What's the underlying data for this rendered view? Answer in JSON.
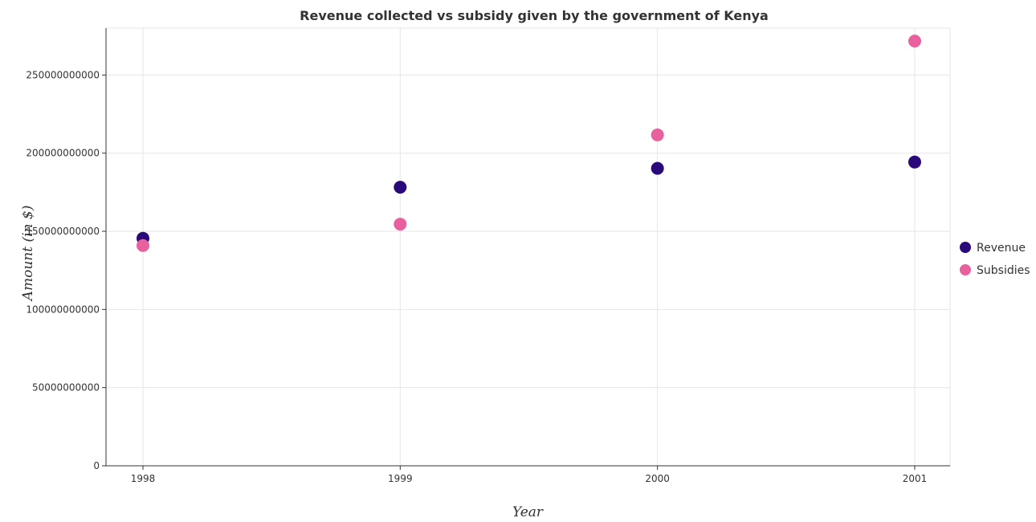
{
  "chart_data": {
    "type": "scatter",
    "title": "Revenue collected vs subsidy given by the government of Kenya",
    "xlabel": "Year",
    "ylabel": "Amount (in $)",
    "categories": [
      "1998",
      "1999",
      "2000",
      "2001"
    ],
    "ylim": [
      0,
      280000000000
    ],
    "yticks": [
      0,
      50000000000,
      100000000000,
      150000000000,
      200000000000,
      250000000000
    ],
    "ytick_labels": [
      "0",
      "50000000000",
      "100000000000",
      "150000000000",
      "200000000000",
      "250000000000"
    ],
    "grid": true,
    "legend_position": "right",
    "series": [
      {
        "name": "Revenue",
        "color": "#2a0a7a",
        "values": [
          145500000000,
          178200000000,
          190300000000,
          194300000000
        ]
      },
      {
        "name": "Subsidies",
        "color": "#e8609e",
        "values": [
          140900000000,
          154600000000,
          211700000000,
          271700000000
        ]
      }
    ]
  }
}
